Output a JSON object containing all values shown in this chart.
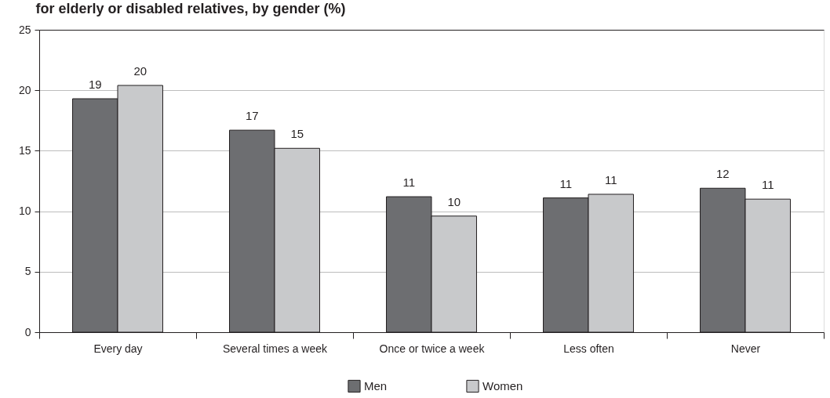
{
  "chart_data": {
    "type": "bar",
    "title": "for elderly or disabled relatives, by gender (%)",
    "categories": [
      "Every day",
      "Several times a week",
      "Once or twice a week",
      "Less often",
      "Never"
    ],
    "series": [
      {
        "name": "Men",
        "color": "#6d6e71",
        "values": [
          19.3,
          16.7,
          11.2,
          11.1,
          11.9
        ],
        "value_labels": [
          "19",
          "17",
          "11",
          "11",
          "12"
        ]
      },
      {
        "name": "Women",
        "color": "#c8c9cb",
        "values": [
          20.4,
          15.2,
          9.6,
          11.4,
          11.0
        ],
        "value_labels": [
          "20",
          "15",
          "10",
          "11",
          "11"
        ]
      }
    ],
    "ylim": [
      0,
      25
    ],
    "yticks": [
      0,
      5,
      10,
      15,
      20,
      25
    ],
    "grid": "y",
    "legend": "bottom"
  }
}
